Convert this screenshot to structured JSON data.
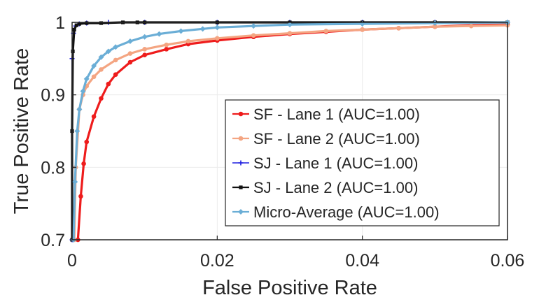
{
  "chart_data": {
    "type": "line",
    "title": "",
    "xlabel": "False Positive Rate",
    "ylabel": "True Positive Rate",
    "xlim": [
      0,
      0.06
    ],
    "ylim": [
      0.7,
      1
    ],
    "xticks": [
      "0",
      "0.02",
      "0.04",
      "0.06"
    ],
    "yticks": [
      "0.7",
      "0.8",
      "0.9",
      "1"
    ],
    "grid": true,
    "legend_position": "bottom-right",
    "series": [
      {
        "name": "SF - Lane 1 (AUC=1.00)",
        "color": "#ee1c1c",
        "marker": "dot",
        "x": [
          0.0008,
          0.0012,
          0.0016,
          0.002,
          0.003,
          0.004,
          0.005,
          0.006,
          0.008,
          0.01,
          0.013,
          0.016,
          0.02,
          0.025,
          0.03,
          0.035,
          0.04,
          0.045,
          0.05,
          0.055,
          0.06
        ],
        "y": [
          0.7,
          0.76,
          0.805,
          0.835,
          0.87,
          0.895,
          0.915,
          0.928,
          0.945,
          0.955,
          0.963,
          0.97,
          0.975,
          0.98,
          0.984,
          0.987,
          0.99,
          0.992,
          0.994,
          0.996,
          0.997
        ]
      },
      {
        "name": "SF - Lane 2 (AUC=1.00)",
        "color": "#f4a582",
        "marker": "dot",
        "x": [
          0.0003,
          0.0005,
          0.001,
          0.0015,
          0.002,
          0.003,
          0.004,
          0.006,
          0.008,
          0.01,
          0.013,
          0.016,
          0.02,
          0.025,
          0.03,
          0.035,
          0.04,
          0.045,
          0.05,
          0.055,
          0.06
        ],
        "y": [
          0.7,
          0.8,
          0.88,
          0.9,
          0.912,
          0.925,
          0.935,
          0.948,
          0.957,
          0.963,
          0.969,
          0.974,
          0.978,
          0.982,
          0.985,
          0.988,
          0.99,
          0.992,
          0.994,
          0.995,
          0.996
        ]
      },
      {
        "name": "SJ - Lane 1 (AUC=1.00)",
        "color": "#1f1fe0",
        "marker": "plus",
        "x": [
          0,
          0,
          0.0002,
          0.0005,
          0.001,
          0.002,
          0.005,
          0.01,
          0.02,
          0.03,
          0.04,
          0.05,
          0.06
        ],
        "y": [
          0.7,
          0.95,
          0.985,
          0.995,
          0.998,
          0.999,
          1.0,
          1.0,
          1.0,
          1.0,
          1.0,
          1.0,
          1.0
        ]
      },
      {
        "name": "SJ - Lane 2 (AUC=1.00)",
        "color": "#111111",
        "marker": "square",
        "x": [
          0,
          0,
          0.0001,
          0.0003,
          0.0006,
          0.001,
          0.002,
          0.004,
          0.007,
          0.009,
          0.01,
          0.02,
          0.03,
          0.04,
          0.05,
          0.06
        ],
        "y": [
          0.7,
          0.85,
          0.96,
          0.99,
          0.996,
          0.998,
          0.999,
          0.999,
          1.0,
          1.0,
          1.0,
          1.0,
          1.0,
          1.0,
          1.0,
          1.0
        ]
      },
      {
        "name": "Micro-Average (AUC=1.00)",
        "color": "#6baed6",
        "marker": "diamond",
        "x": [
          0.0002,
          0.0004,
          0.0007,
          0.001,
          0.0015,
          0.002,
          0.003,
          0.004,
          0.005,
          0.006,
          0.008,
          0.01,
          0.012,
          0.015,
          0.018,
          0.02,
          0.025,
          0.03,
          0.04,
          0.05,
          0.06
        ],
        "y": [
          0.7,
          0.78,
          0.85,
          0.88,
          0.905,
          0.922,
          0.94,
          0.952,
          0.96,
          0.966,
          0.974,
          0.98,
          0.984,
          0.988,
          0.991,
          0.993,
          0.995,
          0.997,
          0.998,
          0.999,
          1.0
        ]
      }
    ]
  }
}
